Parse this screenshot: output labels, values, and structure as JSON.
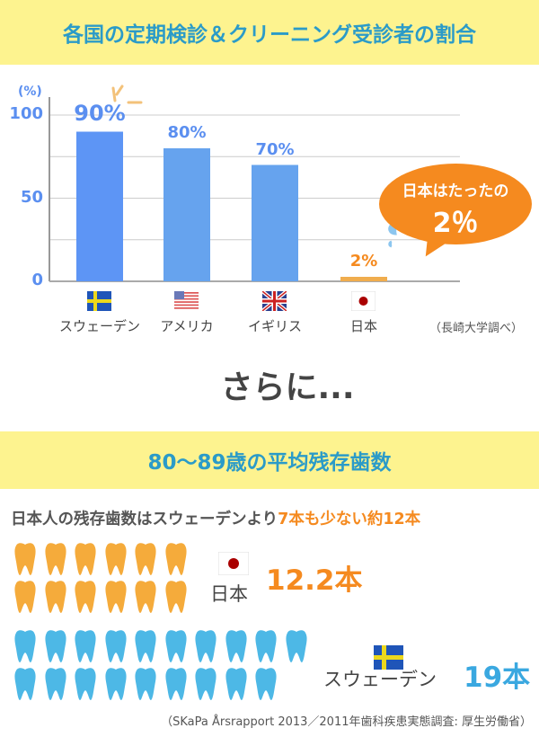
{
  "title": "各国の定期検診＆クリーニング受診者の割合",
  "chart_data": {
    "type": "bar",
    "categories": [
      "スウェーデン",
      "アメリカ",
      "イギリス",
      "日本"
    ],
    "values": [
      90,
      80,
      70,
      2
    ],
    "data_labels": [
      "90%",
      "80%",
      "70%",
      "2%"
    ],
    "ylabel": "(%)",
    "ylim": [
      0,
      100
    ],
    "yticks": [
      "100",
      "50",
      "0"
    ],
    "grid": true,
    "colors": [
      "#5d95f5",
      "#66a3ee",
      "#66a3ee",
      "#f0ad4e"
    ],
    "source": "（長崎大学調べ）",
    "callout": {
      "line1": "日本はたったの",
      "line2": "2％"
    }
  },
  "sarani": "さらに...",
  "section2": {
    "title": "80〜89歳の平均残存歯数",
    "subtitle_plain": "日本人の残存歯数はスウェーデンより",
    "subtitle_highlight": "7本も少ない約12本",
    "japan": {
      "label": "日本",
      "value": "12.2本",
      "teeth": 12,
      "color": "#f5ab3b"
    },
    "sweden": {
      "label": "スウェーデン",
      "value": "19本",
      "teeth": 19,
      "color": "#4db8e6"
    },
    "source": "（SKaPa Årsrapport 2013／2011年歯科疾患実態調査: 厚生労働省）"
  }
}
